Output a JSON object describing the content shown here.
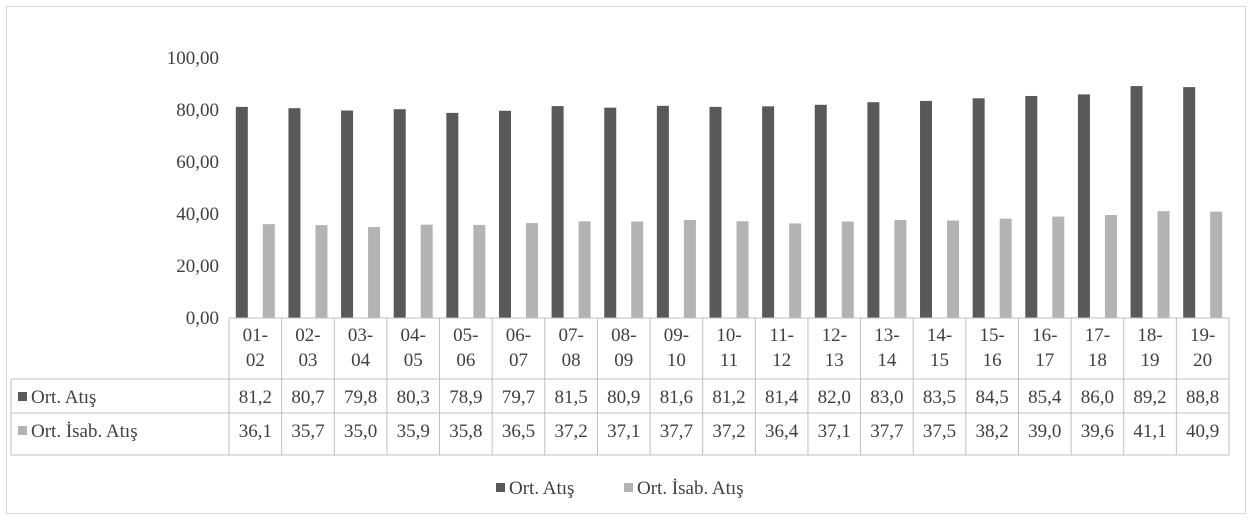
{
  "chart_data": {
    "type": "bar",
    "title": "",
    "xlabel": "",
    "ylabel": "",
    "ylim": [
      0,
      100
    ],
    "yticks": [
      "0,00",
      "20,00",
      "40,00",
      "60,00",
      "80,00",
      "100,00"
    ],
    "ytick_values": [
      0,
      20,
      40,
      60,
      80,
      100
    ],
    "categories": [
      [
        "01-",
        "02"
      ],
      [
        "02-",
        "03"
      ],
      [
        "03-",
        "04"
      ],
      [
        "04-",
        "05"
      ],
      [
        "05-",
        "06"
      ],
      [
        "06-",
        "07"
      ],
      [
        "07-",
        "08"
      ],
      [
        "08-",
        "09"
      ],
      [
        "09-",
        "10"
      ],
      [
        "10-",
        "11"
      ],
      [
        "11-",
        "12"
      ],
      [
        "12-",
        "13"
      ],
      [
        "13-",
        "14"
      ],
      [
        "14-",
        "15"
      ],
      [
        "15-",
        "16"
      ],
      [
        "16-",
        "17"
      ],
      [
        "17-",
        "18"
      ],
      [
        "18-",
        "19"
      ],
      [
        "19-",
        "20"
      ]
    ],
    "series": [
      {
        "name": "Ort. Atış",
        "color": "#595959",
        "values": [
          81.2,
          80.7,
          79.8,
          80.3,
          78.9,
          79.7,
          81.5,
          80.9,
          81.6,
          81.2,
          81.4,
          82.0,
          83.0,
          83.5,
          84.5,
          85.4,
          86.0,
          89.2,
          88.8
        ],
        "labels": [
          "81,2",
          "80,7",
          "79,8",
          "80,3",
          "78,9",
          "79,7",
          "81,5",
          "80,9",
          "81,6",
          "81,2",
          "81,4",
          "82,0",
          "83,0",
          "83,5",
          "84,5",
          "85,4",
          "86,0",
          "89,2",
          "88,8"
        ]
      },
      {
        "name": "Ort. İsab. Atış",
        "color": "#b3b3b3",
        "values": [
          36.1,
          35.7,
          35.0,
          35.9,
          35.8,
          36.5,
          37.2,
          37.1,
          37.7,
          37.2,
          36.4,
          37.1,
          37.7,
          37.5,
          38.2,
          39.0,
          39.6,
          41.1,
          40.9
        ],
        "labels": [
          "36,1",
          "35,7",
          "35,0",
          "35,9",
          "35,8",
          "36,5",
          "37,2",
          "37,1",
          "37,7",
          "37,2",
          "36,4",
          "37,1",
          "37,7",
          "37,5",
          "38,2",
          "39,0",
          "39,6",
          "41,1",
          "40,9"
        ]
      }
    ],
    "grid": false,
    "legend": "bottom",
    "data_table": true
  }
}
